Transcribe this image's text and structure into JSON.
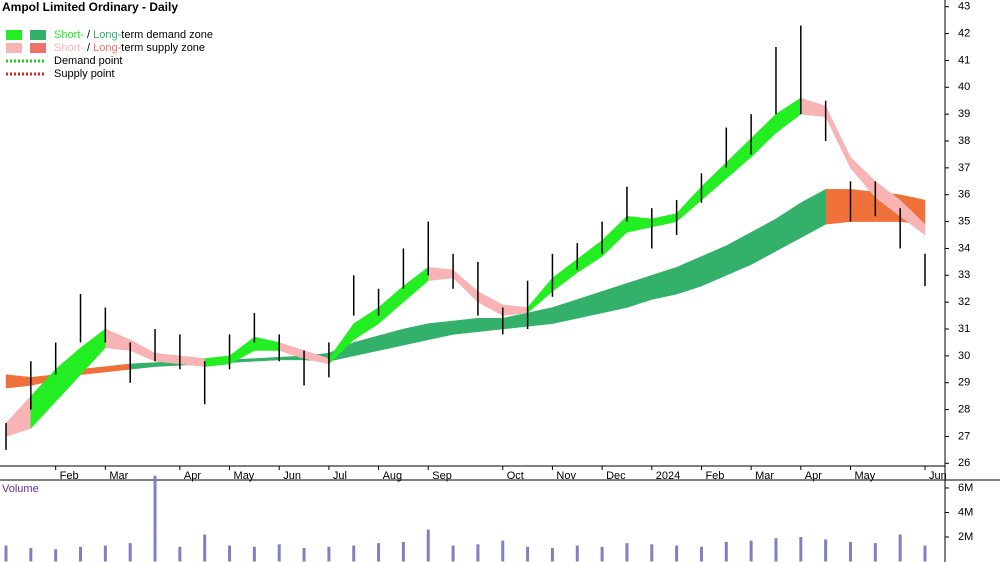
{
  "chart_data": {
    "type": "ohlc",
    "title": "Ampol Limited Ordinary - Daily",
    "legend": [
      {
        "short": "Short-",
        "sep": " / ",
        "long": "Long-",
        "rest": "term demand zone",
        "short_color": "#22ee22",
        "long_color": "#33b06a"
      },
      {
        "short": "Short-",
        "sep": " / ",
        "long": "Long-",
        "rest": "term supply zone",
        "short_color": "#f8b4b4",
        "long_color": "#f0706a"
      },
      {
        "label": "Demand point",
        "color": "#22cc22"
      },
      {
        "label": "Supply point",
        "color": "#dd2222"
      }
    ],
    "categories": [
      null,
      null,
      "Feb",
      null,
      "Mar",
      null,
      null,
      "Apr",
      null,
      "May",
      null,
      "Jun",
      null,
      "Jul",
      null,
      "Aug",
      null,
      "Sep",
      null,
      null,
      "Oct",
      null,
      "Nov",
      null,
      "Dec",
      null,
      "2024",
      null,
      "Feb",
      null,
      "Mar",
      null,
      "Apr",
      null,
      "May",
      null,
      null,
      "Jun"
    ],
    "price": {
      "color": "#000000",
      "high": [
        27.5,
        29.8,
        30.5,
        32.3,
        31.8,
        30.5,
        31,
        30.8,
        29.8,
        30.8,
        31.6,
        30.8,
        30.2,
        30.5,
        33,
        32.5,
        34,
        35,
        33.8,
        33.5,
        31.8,
        32.8,
        33.8,
        34.2,
        35,
        36.3,
        35.5,
        35.8,
        36.8,
        38.5,
        39,
        41.5,
        42.3,
        39.5,
        36.5,
        36.5,
        35.5,
        33.8
      ],
      "low": [
        26.5,
        28,
        29.3,
        30.5,
        30.5,
        29,
        29.8,
        29.5,
        28.2,
        29.5,
        30.5,
        29.8,
        28.9,
        29.2,
        31.5,
        31.5,
        32.5,
        33,
        32.5,
        31.5,
        30.8,
        31,
        32.2,
        33.2,
        33.8,
        35,
        34,
        34.5,
        35.7,
        37,
        37.5,
        39,
        39,
        38,
        35,
        35.2,
        34,
        32.6
      ]
    },
    "zones": [
      {
        "name": "Long-term supply zone",
        "color": "#f0703a",
        "values": [
          29.3,
          29.2,
          29.3,
          29.5,
          29.6,
          29.7,
          null,
          null,
          null,
          null,
          null,
          null,
          null,
          null,
          null,
          null,
          null,
          null,
          null,
          null,
          null,
          null,
          null,
          null,
          null,
          null,
          null,
          null,
          null,
          null,
          null,
          null,
          null,
          36.2,
          36.2,
          36.1,
          36.0,
          35.8
        ],
        "lower": [
          28.8,
          28.9,
          29.1,
          29.3,
          29.4,
          29.5,
          null,
          null,
          null,
          null,
          null,
          null,
          null,
          null,
          null,
          null,
          null,
          null,
          null,
          null,
          null,
          null,
          null,
          null,
          null,
          null,
          null,
          null,
          null,
          null,
          null,
          null,
          null,
          34.9,
          35.0,
          35.0,
          35.0,
          34.9
        ]
      },
      {
        "name": "Long-term demand zone",
        "color": "#33b06a",
        "values": [
          null,
          null,
          null,
          null,
          null,
          29.7,
          29.75,
          29.8,
          29.8,
          29.85,
          29.9,
          29.95,
          30,
          30.1,
          30.5,
          30.75,
          31,
          31.2,
          31.3,
          31.4,
          31.4,
          31.6,
          31.8,
          32.1,
          32.4,
          32.7,
          33.0,
          33.3,
          33.7,
          34.1,
          34.6,
          35.1,
          35.7,
          36.2,
          null,
          null,
          null,
          null
        ],
        "lower": [
          null,
          null,
          null,
          null,
          null,
          29.5,
          29.6,
          29.65,
          29.7,
          29.75,
          29.8,
          29.85,
          29.85,
          29.8,
          30.0,
          30.2,
          30.4,
          30.6,
          30.8,
          30.9,
          31.0,
          31.1,
          31.2,
          31.4,
          31.6,
          31.8,
          32.1,
          32.3,
          32.6,
          33,
          33.4,
          33.9,
          34.4,
          34.9,
          null,
          null,
          null,
          null
        ]
      },
      {
        "name": "Short-term supply zone",
        "color": "#f8b4b4",
        "values": [
          27.5,
          28.5,
          null,
          null,
          31,
          30.6,
          30.1,
          30.0,
          29.9,
          null,
          null,
          30.5,
          30.2,
          29.9,
          null,
          null,
          null,
          33.3,
          33.2,
          32.4,
          31.9,
          31.8,
          null,
          null,
          null,
          null,
          35.1,
          35.3,
          null,
          null,
          null,
          null,
          39.6,
          39.3,
          37.4,
          36.5,
          35.8,
          34.9
        ],
        "lower": [
          27.0,
          27.3,
          null,
          null,
          30.3,
          30.2,
          29.8,
          29.7,
          29.6,
          null,
          null,
          30.2,
          29.9,
          29.7,
          null,
          null,
          null,
          32.8,
          32.9,
          32.0,
          31.5,
          31.6,
          null,
          null,
          null,
          null,
          34.8,
          35.0,
          null,
          null,
          null,
          null,
          39.0,
          38.9,
          37.0,
          35.9,
          35.2,
          34.5
        ]
      },
      {
        "name": "Short-term demand zone",
        "color": "#22ee22",
        "values": [
          null,
          28.5,
          29.5,
          30.3,
          31,
          null,
          null,
          null,
          29.9,
          30,
          30.7,
          30.5,
          null,
          29.9,
          31.2,
          31.8,
          32.6,
          33.3,
          null,
          null,
          null,
          31.8,
          32.9,
          33.6,
          34.3,
          35.2,
          35.1,
          35.3,
          36.3,
          37.2,
          38.1,
          39.0,
          39.6,
          null,
          null,
          null,
          null,
          null
        ],
        "lower": [
          null,
          27.3,
          28.3,
          29.3,
          30.3,
          null,
          null,
          null,
          29.6,
          29.7,
          30.2,
          30.2,
          null,
          29.7,
          30.6,
          31.2,
          32,
          32.8,
          null,
          null,
          null,
          31.6,
          32.4,
          33.1,
          33.7,
          34.6,
          34.8,
          35.0,
          35.8,
          36.6,
          37.4,
          38.3,
          39.0,
          null,
          null,
          null,
          null,
          null
        ]
      }
    ],
    "ylim": [
      25.9,
      43.25
    ],
    "yticks": [
      26,
      27,
      28,
      29,
      30,
      31,
      32,
      33,
      34,
      35,
      36,
      37,
      38,
      39,
      40,
      41,
      42,
      43
    ],
    "volume": {
      "label": "Volume",
      "color": "#8080c0",
      "values": [
        1300000,
        1100000,
        1000000,
        1200000,
        1300000,
        1500000,
        7000000,
        1200000,
        2200000,
        1300000,
        1200000,
        1400000,
        1100000,
        1200000,
        1300000,
        1500000,
        1600000,
        2600000,
        1300000,
        1400000,
        1700000,
        1200000,
        1100000,
        1300000,
        1200000,
        1500000,
        1400000,
        1300000,
        1200000,
        1600000,
        1700000,
        1900000,
        2000000,
        1800000,
        1600000,
        1500000,
        2200000,
        1300000
      ],
      "ylim": [
        0,
        6650000
      ],
      "yticks": [
        {
          "value": 2000000,
          "label": "2M"
        },
        {
          "value": 4000000,
          "label": "4M"
        },
        {
          "value": 6000000,
          "label": "6M"
        }
      ]
    }
  }
}
